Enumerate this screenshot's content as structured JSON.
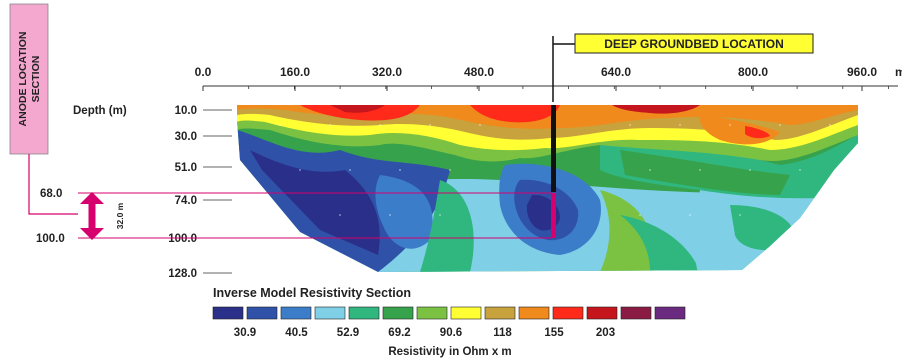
{
  "anode_box": {
    "line1": "ANODE LOCATION",
    "line2": "SECTION",
    "fill": "#f4a7cf"
  },
  "groundbed_label": {
    "text": "DEEP GROUNDBED LOCATION",
    "fill": "#ffff33"
  },
  "x_axis": {
    "ticks": [
      "0.0",
      "160.0",
      "320.0",
      "480.0",
      "640.0",
      "800.0",
      "960.0"
    ],
    "unit": "m"
  },
  "depth_axis": {
    "title": "Depth (m)",
    "ticks": [
      "10.0",
      "30.0",
      "51.0",
      "74.0",
      "100.0",
      "128.0"
    ]
  },
  "anode_section": {
    "top": "68.0",
    "bottom": "100.0",
    "thickness": "32.0 m",
    "arrow_color": "#d6006e"
  },
  "section_title": "Inverse Model Resistivity Section",
  "legend": {
    "colors": [
      "#2a2f8a",
      "#2f52a8",
      "#3b7dc9",
      "#7fcfe6",
      "#2fb77f",
      "#37a24c",
      "#7cc242",
      "#ffff33",
      "#c8a23c",
      "#f08a1c",
      "#ff2a1a",
      "#c4161c",
      "#8a1c44",
      "#6a2a80"
    ],
    "labels": [
      "30.9",
      "40.5",
      "52.9",
      "69.2",
      "90.6",
      "118",
      "155",
      "203"
    ],
    "caption": "Resistivity in Ohm x m"
  }
}
